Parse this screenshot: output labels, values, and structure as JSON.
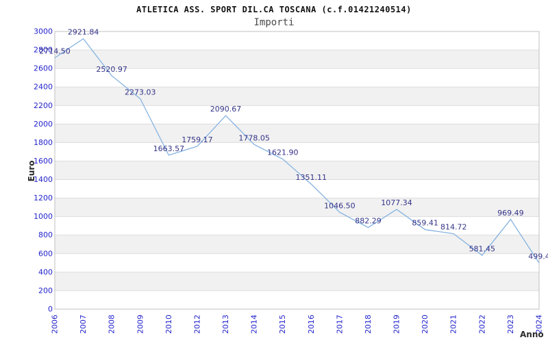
{
  "chart_data": {
    "type": "line",
    "title": "ATLETICA ASS. SPORT DIL.CA TOSCANA (c.f.01421240514)",
    "subtitle": "Importi",
    "xlabel": "Anno",
    "ylabel": "Euro",
    "categories": [
      "2006",
      "2007",
      "2008",
      "2009",
      "2010",
      "2012",
      "2013",
      "2014",
      "2015",
      "2016",
      "2017",
      "2018",
      "2019",
      "2020",
      "2021",
      "2022",
      "2023",
      "2024"
    ],
    "values": [
      2714.5,
      2921.84,
      2520.97,
      2273.03,
      1663.57,
      1759.17,
      2090.67,
      1778.05,
      1621.9,
      1351.11,
      1046.5,
      882.29,
      1077.34,
      859.41,
      814.72,
      581.45,
      969.49,
      499.4
    ],
    "point_labels": [
      "2714.50",
      "2921.84",
      "2520.97",
      "2273.03",
      "1663.57",
      "1759.17",
      "2090.67",
      "1778.05",
      "1621.90",
      "1351.11",
      "1046.50",
      "882.29",
      "1077.34",
      "859.41",
      "814.72",
      "581.45",
      "969.49",
      "499.4"
    ],
    "ylim": [
      0,
      3000
    ],
    "ytick_step": 200,
    "grid": true,
    "legend_position": "none",
    "notes": "year 2011 absent from axis; alternating shaded horizontal bands",
    "colors": {
      "line": "#85b3e1",
      "tick_label": "#2323cc",
      "point_label": "#333388",
      "band": "#f1f1f1",
      "grid": "#dcdcdc",
      "border": "#c0c0c0",
      "title": "#111111",
      "subtitle": "#4a4a4a",
      "axis_title": "#2b2b2b"
    }
  }
}
